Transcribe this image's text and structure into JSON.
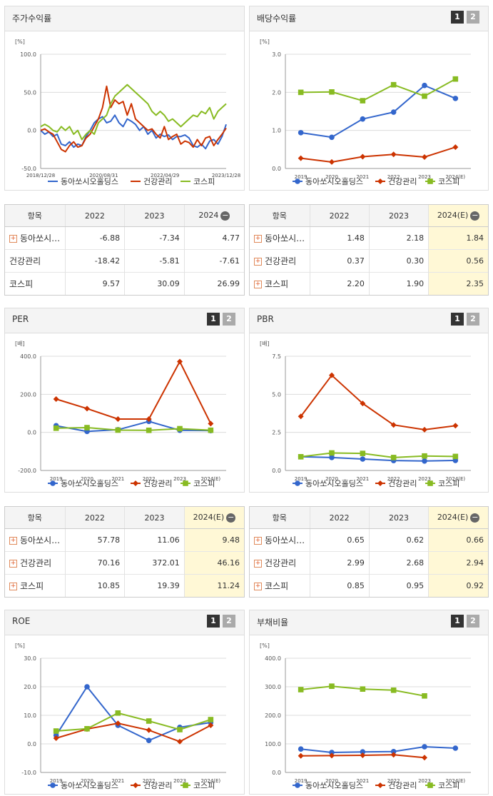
{
  "colors": {
    "s1": "#3366cc",
    "s2": "#cc3300",
    "s3": "#88bb22"
  },
  "legend": [
    "동아쏘시오홀딩스",
    "건강관리",
    "코스피"
  ],
  "pager": [
    "1",
    "2"
  ],
  "collapse_icon": "minus-circle-icon",
  "expand_icon": "plus-box-icon",
  "panels": {
    "stock": {
      "title": "주가수익률",
      "unit": "[%]"
    },
    "div": {
      "title": "배당수익률",
      "unit": "[%]"
    },
    "per": {
      "title": "PER",
      "unit": "[배]"
    },
    "pbr": {
      "title": "PBR",
      "unit": "[배]"
    },
    "roe": {
      "title": "ROE",
      "unit": "[%]"
    },
    "debt": {
      "title": "부채비율",
      "unit": "[%]"
    }
  },
  "tables": {
    "stock": {
      "headers": [
        "항목",
        "2022",
        "2023",
        "2024"
      ],
      "rows": [
        {
          "name": "동아쏘시…",
          "values": [
            "-6.88",
            "-7.34",
            "4.77"
          ],
          "expandable": true
        },
        {
          "name": "건강관리",
          "values": [
            "-18.42",
            "-5.81",
            "-7.61"
          ],
          "expandable": false
        },
        {
          "name": "코스피",
          "values": [
            "9.57",
            "30.09",
            "26.99"
          ],
          "expandable": false
        }
      ]
    },
    "div": {
      "headers": [
        "항목",
        "2022",
        "2023",
        "2024(E)"
      ],
      "rows": [
        {
          "name": "동아쏘시…",
          "values": [
            "1.48",
            "2.18",
            "1.84"
          ],
          "expandable": true
        },
        {
          "name": "건강관리",
          "values": [
            "0.37",
            "0.30",
            "0.56"
          ],
          "expandable": true
        },
        {
          "name": "코스피",
          "values": [
            "2.20",
            "1.90",
            "2.35"
          ],
          "expandable": true
        }
      ]
    },
    "per": {
      "headers": [
        "항목",
        "2022",
        "2023",
        "2024(E)"
      ],
      "rows": [
        {
          "name": "동아쏘시…",
          "values": [
            "57.78",
            "11.06",
            "9.48"
          ],
          "expandable": true
        },
        {
          "name": "건강관리",
          "values": [
            "70.16",
            "372.01",
            "46.16"
          ],
          "expandable": true
        },
        {
          "name": "코스피",
          "values": [
            "10.85",
            "19.39",
            "11.24"
          ],
          "expandable": true
        }
      ]
    },
    "pbr": {
      "headers": [
        "항목",
        "2022",
        "2023",
        "2024(E)"
      ],
      "rows": [
        {
          "name": "동아쏘시…",
          "values": [
            "0.65",
            "0.62",
            "0.66"
          ],
          "expandable": true
        },
        {
          "name": "건강관리",
          "values": [
            "2.99",
            "2.68",
            "2.94"
          ],
          "expandable": true
        },
        {
          "name": "코스피",
          "values": [
            "0.85",
            "0.95",
            "0.92"
          ],
          "expandable": true
        }
      ]
    }
  },
  "chart_data": [
    {
      "id": "stock",
      "type": "line",
      "title": "주가수익률",
      "ylabel": "[%]",
      "ylim": [
        -50,
        100
      ],
      "yticks": [
        "100.0",
        "50.0",
        "0.0",
        "-50.0"
      ],
      "xticks": [
        "2018/12/28",
        "2020/08/31",
        "2022/04/29",
        "2023/12/28"
      ],
      "series": [
        {
          "name": "동아쏘시오홀딩스",
          "values": [
            0,
            -5,
            -2,
            -8,
            -5,
            -18,
            -20,
            -15,
            -22,
            -18,
            -20,
            -8,
            0,
            10,
            15,
            18,
            10,
            12,
            20,
            10,
            5,
            15,
            12,
            8,
            0,
            5,
            -5,
            0,
            -10,
            -5,
            -8,
            -6,
            -12,
            -8,
            -8,
            -6,
            -10,
            -20,
            -22,
            -18,
            -24,
            -14,
            -12,
            -18,
            -8,
            8
          ]
        },
        {
          "name": "건강관리",
          "values": [
            0,
            2,
            -2,
            -5,
            -15,
            -25,
            -28,
            -20,
            -15,
            -22,
            -20,
            -10,
            -5,
            5,
            15,
            30,
            58,
            30,
            40,
            35,
            38,
            20,
            35,
            15,
            10,
            5,
            0,
            2,
            -5,
            -10,
            5,
            -12,
            -8,
            -5,
            -18,
            -14,
            -16,
            -22,
            -12,
            -20,
            -10,
            -8,
            -20,
            -12,
            -5,
            3
          ]
        },
        {
          "name": "코스피",
          "values": [
            5,
            8,
            5,
            0,
            -2,
            5,
            0,
            5,
            -5,
            0,
            -12,
            -5,
            0,
            -5,
            10,
            15,
            20,
            35,
            45,
            50,
            55,
            60,
            55,
            50,
            45,
            40,
            35,
            25,
            20,
            25,
            20,
            12,
            15,
            10,
            5,
            10,
            15,
            20,
            18,
            25,
            22,
            30,
            15,
            25,
            30,
            35
          ]
        }
      ]
    },
    {
      "id": "div",
      "type": "line",
      "title": "배당수익률",
      "ylabel": "[%]",
      "ylim": [
        0,
        3
      ],
      "yticks": [
        "3.0",
        "2.0",
        "1.0",
        "0.0"
      ],
      "categories": [
        "2019",
        "2020",
        "2021",
        "2022",
        "2023",
        "2024(E)"
      ],
      "series": [
        {
          "name": "동아쏘시오홀딩스",
          "values": [
            0.94,
            0.82,
            1.3,
            1.48,
            2.18,
            1.84
          ]
        },
        {
          "name": "건강관리",
          "values": [
            0.27,
            0.17,
            0.31,
            0.37,
            0.3,
            0.56
          ]
        },
        {
          "name": "코스피",
          "values": [
            2.0,
            2.01,
            1.78,
            2.2,
            1.9,
            2.35
          ]
        }
      ]
    },
    {
      "id": "per",
      "type": "line",
      "title": "PER",
      "ylabel": "[배]",
      "ylim": [
        -200,
        400
      ],
      "yticks": [
        "400.0",
        "200.0",
        "0.0",
        "-200.0"
      ],
      "categories": [
        "2019",
        "2020",
        "2021",
        "2022",
        "2023",
        "2024(E)"
      ],
      "series": [
        {
          "name": "동아쏘시오홀딩스",
          "values": [
            35,
            5,
            14,
            57.78,
            11.06,
            9.48
          ]
        },
        {
          "name": "건강관리",
          "values": [
            175,
            125,
            70,
            70.16,
            372.01,
            46.16
          ]
        },
        {
          "name": "코스피",
          "values": [
            22,
            25,
            12,
            10.85,
            19.39,
            11.24
          ]
        }
      ]
    },
    {
      "id": "pbr",
      "type": "line",
      "title": "PBR",
      "ylabel": "[배]",
      "ylim": [
        0,
        7.5
      ],
      "yticks": [
        "7.5",
        "5.0",
        "2.5",
        "0.0"
      ],
      "categories": [
        "2019",
        "2020",
        "2021",
        "2022",
        "2023",
        "2024(E)"
      ],
      "series": [
        {
          "name": "동아쏘시오홀딩스",
          "values": [
            0.9,
            0.85,
            0.75,
            0.65,
            0.62,
            0.66
          ]
        },
        {
          "name": "건강관리",
          "values": [
            3.55,
            6.25,
            4.4,
            2.99,
            2.68,
            2.94
          ]
        },
        {
          "name": "코스피",
          "values": [
            0.9,
            1.15,
            1.12,
            0.85,
            0.95,
            0.92
          ]
        }
      ]
    },
    {
      "id": "roe",
      "type": "line",
      "title": "ROE",
      "ylabel": "[%]",
      "ylim": [
        -10,
        30
      ],
      "yticks": [
        "30.0",
        "20.0",
        "10.0",
        "0.0",
        "-10.0"
      ],
      "categories": [
        "2019",
        "2020",
        "2021",
        "2022",
        "2023",
        "2024(E)"
      ],
      "series": [
        {
          "name": "동아쏘시오홀딩스",
          "values": [
            3,
            20,
            6.5,
            1.2,
            5.8,
            7.5
          ]
        },
        {
          "name": "건강관리",
          "values": [
            2,
            5.2,
            7.2,
            4.8,
            0.8,
            6.5
          ]
        },
        {
          "name": "코스피",
          "values": [
            4.5,
            5.3,
            10.8,
            8,
            5,
            8.5
          ]
        }
      ]
    },
    {
      "id": "debt",
      "type": "line",
      "title": "부채비율",
      "ylabel": "[%]",
      "ylim": [
        0,
        400
      ],
      "yticks": [
        "400.0",
        "300.0",
        "200.0",
        "100.0",
        "0.0"
      ],
      "categories": [
        "2019",
        "2020",
        "2021",
        "2022",
        "2023",
        "2024(E)"
      ],
      "series": [
        {
          "name": "동아쏘시오홀딩스",
          "values": [
            82,
            70,
            72,
            73,
            90,
            85
          ]
        },
        {
          "name": "건강관리",
          "values": [
            58,
            59,
            60,
            62,
            52,
            null
          ]
        },
        {
          "name": "코스피",
          "values": [
            290,
            302,
            292,
            288,
            268,
            null
          ]
        }
      ]
    }
  ]
}
